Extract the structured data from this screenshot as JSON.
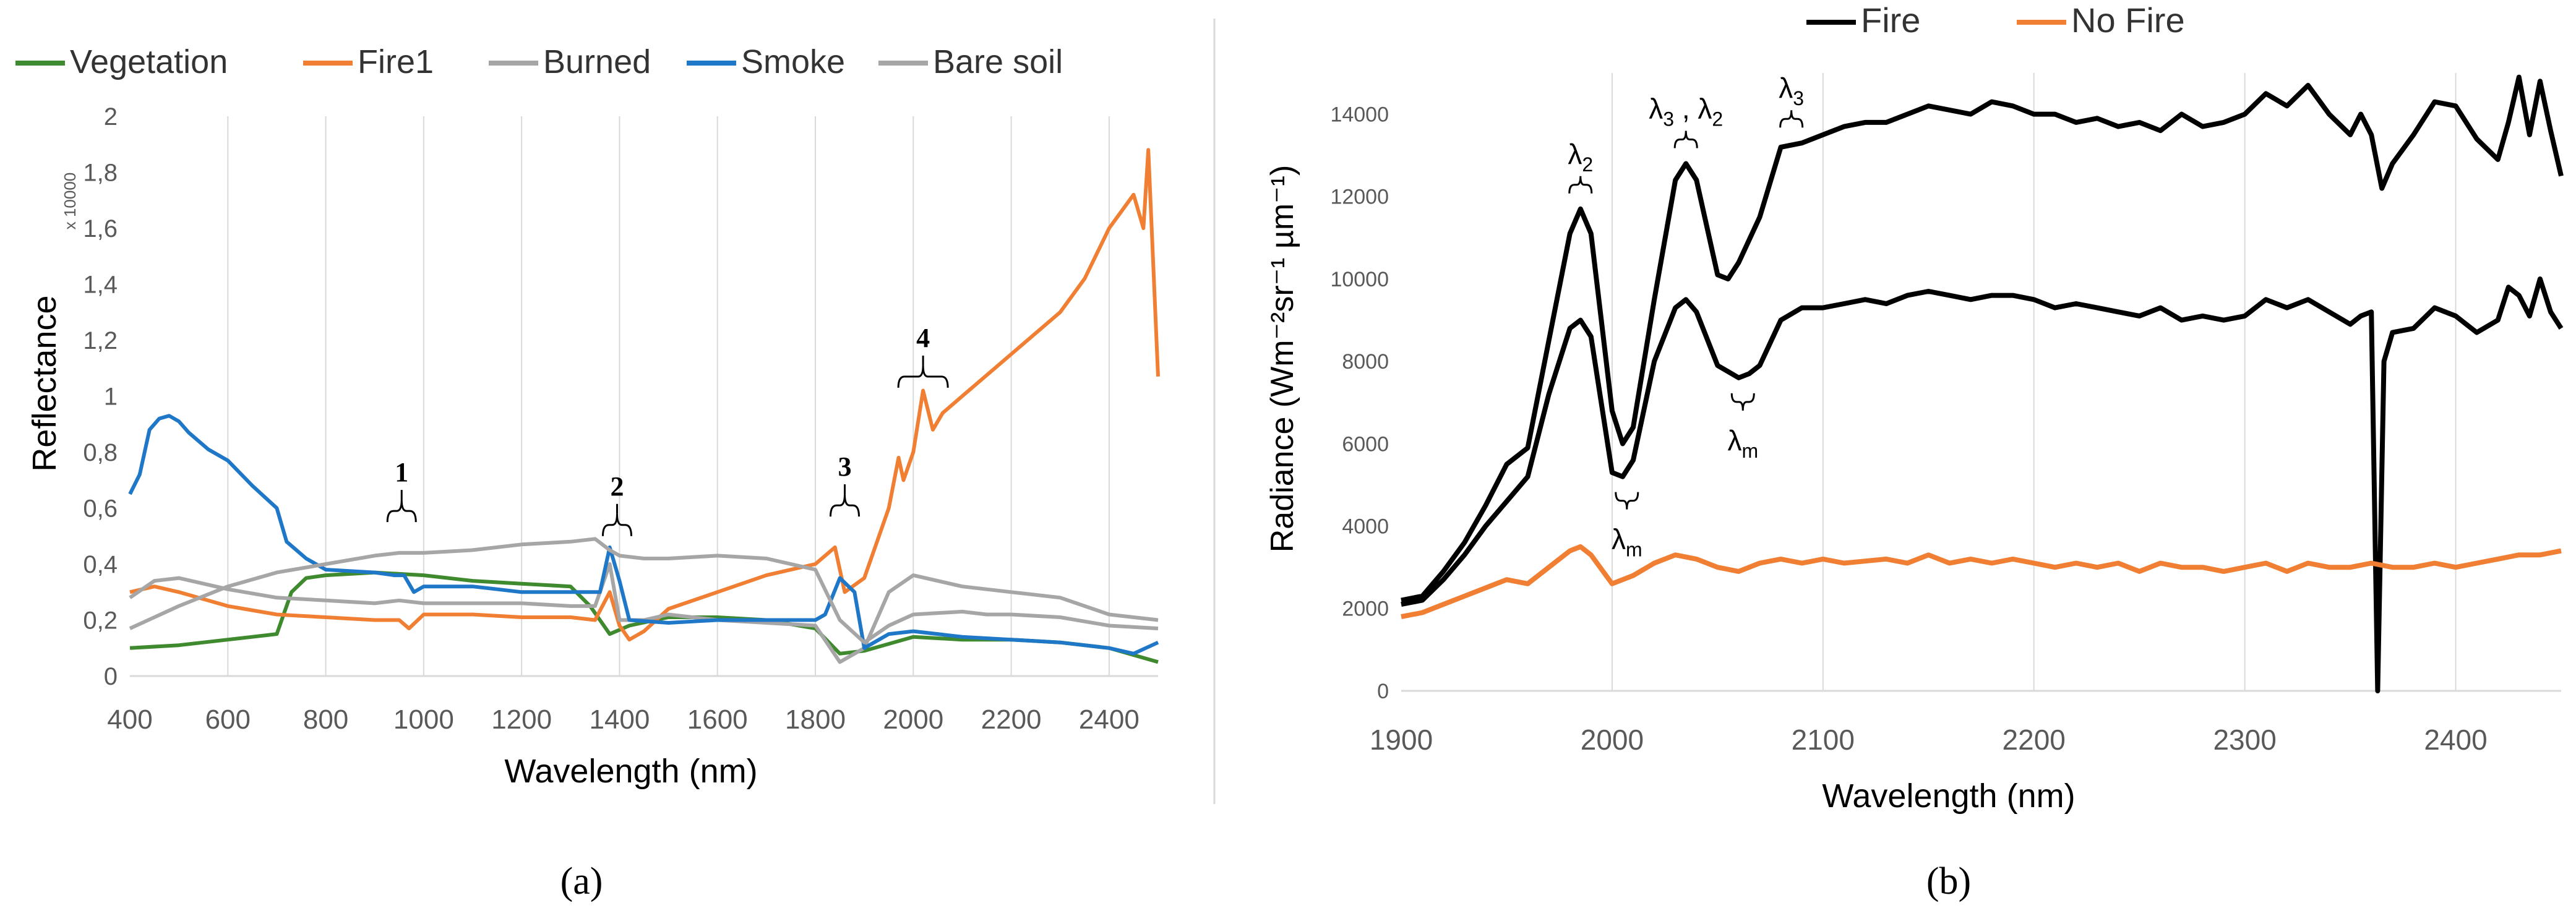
{
  "chart_data": [
    {
      "type": "line",
      "panel_label": "(a)",
      "title": "",
      "xlabel": "Wavelength (nm)",
      "ylabel": "Reflectance",
      "yscale_note": "x 10000",
      "xlim": [
        400,
        2500
      ],
      "ylim": [
        0,
        2
      ],
      "xticks": [
        400,
        600,
        800,
        1000,
        1200,
        1400,
        1600,
        1800,
        2000,
        2200,
        2400
      ],
      "yticks": [
        0,
        0.2,
        0.4,
        0.6,
        0.8,
        1,
        1.2,
        1.4,
        1.6,
        1.8,
        2
      ],
      "ytick_labels": [
        "0",
        "0,2",
        "0,4",
        "0,6",
        "0,8",
        "1",
        "1,2",
        "1,4",
        "1,6",
        "1,8",
        "2"
      ],
      "grid": "vertical",
      "legend_position": "top",
      "series": [
        {
          "name": "Vegetation",
          "color": "#3f8a2e",
          "x": [
            400,
            500,
            600,
            650,
            700,
            730,
            760,
            800,
            900,
            1000,
            1100,
            1200,
            1300,
            1340,
            1380,
            1420,
            1500,
            1600,
            1700,
            1800,
            1850,
            1900,
            2000,
            2100,
            2200,
            2300,
            2400,
            2500
          ],
          "y": [
            0.1,
            0.11,
            0.13,
            0.14,
            0.15,
            0.3,
            0.35,
            0.36,
            0.37,
            0.36,
            0.34,
            0.33,
            0.32,
            0.25,
            0.15,
            0.18,
            0.21,
            0.21,
            0.2,
            0.17,
            0.08,
            0.09,
            0.14,
            0.13,
            0.13,
            0.12,
            0.1,
            0.05
          ]
        },
        {
          "name": "Fire1",
          "color": "#f07f33",
          "x": [
            400,
            450,
            500,
            600,
            700,
            800,
            900,
            950,
            970,
            1000,
            1100,
            1200,
            1300,
            1350,
            1380,
            1400,
            1420,
            1450,
            1500,
            1600,
            1700,
            1800,
            1840,
            1860,
            1900,
            1950,
            1970,
            1980,
            2000,
            2020,
            2040,
            2060,
            2100,
            2200,
            2300,
            2350,
            2400,
            2450,
            2470,
            2480,
            2500
          ],
          "y": [
            0.3,
            0.32,
            0.3,
            0.25,
            0.22,
            0.21,
            0.2,
            0.2,
            0.17,
            0.22,
            0.22,
            0.21,
            0.21,
            0.2,
            0.3,
            0.18,
            0.13,
            0.16,
            0.24,
            0.3,
            0.36,
            0.4,
            0.46,
            0.3,
            0.35,
            0.6,
            0.78,
            0.7,
            0.8,
            1.02,
            0.88,
            0.94,
            1.0,
            1.15,
            1.3,
            1.42,
            1.6,
            1.72,
            1.6,
            1.88,
            1.07
          ]
        },
        {
          "name": "Burned",
          "color": "#a6a6a6",
          "x": [
            400,
            450,
            500,
            600,
            700,
            800,
            900,
            950,
            1000,
            1100,
            1200,
            1300,
            1350,
            1380,
            1400,
            1450,
            1500,
            1600,
            1700,
            1800,
            1850,
            1900,
            1950,
            2000,
            2100,
            2200,
            2300,
            2400,
            2500
          ],
          "y": [
            0.28,
            0.34,
            0.35,
            0.31,
            0.28,
            0.27,
            0.26,
            0.27,
            0.26,
            0.26,
            0.26,
            0.25,
            0.25,
            0.4,
            0.2,
            0.2,
            0.22,
            0.2,
            0.19,
            0.18,
            0.05,
            0.1,
            0.3,
            0.36,
            0.32,
            0.3,
            0.28,
            0.22,
            0.2
          ]
        },
        {
          "name": "Smoke",
          "color": "#1f77c8",
          "x": [
            400,
            420,
            440,
            460,
            480,
            500,
            520,
            560,
            600,
            650,
            700,
            720,
            760,
            800,
            900,
            940,
            960,
            980,
            1000,
            1100,
            1150,
            1200,
            1300,
            1360,
            1380,
            1400,
            1420,
            1500,
            1600,
            1700,
            1800,
            1820,
            1850,
            1880,
            1900,
            1950,
            2000,
            2100,
            2200,
            2300,
            2400,
            2450,
            2500
          ],
          "y": [
            0.65,
            0.72,
            0.88,
            0.92,
            0.93,
            0.91,
            0.87,
            0.81,
            0.77,
            0.68,
            0.6,
            0.48,
            0.42,
            0.38,
            0.37,
            0.36,
            0.36,
            0.3,
            0.32,
            0.32,
            0.31,
            0.3,
            0.3,
            0.3,
            0.46,
            0.34,
            0.2,
            0.19,
            0.2,
            0.2,
            0.2,
            0.22,
            0.35,
            0.3,
            0.1,
            0.15,
            0.16,
            0.14,
            0.13,
            0.12,
            0.1,
            0.08,
            0.12
          ]
        },
        {
          "name": "Bare soil",
          "color": "#a6a6a6",
          "x": [
            400,
            500,
            600,
            700,
            800,
            900,
            950,
            1000,
            1100,
            1200,
            1300,
            1350,
            1380,
            1400,
            1450,
            1500,
            1600,
            1700,
            1800,
            1850,
            1900,
            1950,
            2000,
            2100,
            2150,
            2200,
            2300,
            2400,
            2500
          ],
          "y": [
            0.17,
            0.25,
            0.32,
            0.37,
            0.4,
            0.43,
            0.44,
            0.44,
            0.45,
            0.47,
            0.48,
            0.49,
            0.45,
            0.43,
            0.42,
            0.42,
            0.43,
            0.42,
            0.38,
            0.2,
            0.12,
            0.18,
            0.22,
            0.23,
            0.22,
            0.22,
            0.21,
            0.18,
            0.17
          ]
        }
      ],
      "annotations": [
        {
          "label": "1",
          "x": 955
        },
        {
          "label": "2",
          "x": 1395
        },
        {
          "label": "3",
          "x": 1860
        },
        {
          "label": "4",
          "x": 2020
        }
      ]
    },
    {
      "type": "line",
      "panel_label": "(b)",
      "title": "",
      "xlabel": "Wavelength (nm)",
      "ylabel": "Radiance (Wm⁻²sr⁻¹ µm⁻¹)",
      "xlim": [
        1900,
        2450
      ],
      "ylim": [
        0,
        15000
      ],
      "xticks": [
        1900,
        2000,
        2100,
        2200,
        2300,
        2400
      ],
      "yticks": [
        0,
        2000,
        4000,
        6000,
        8000,
        10000,
        12000,
        14000
      ],
      "grid": "vertical",
      "legend_position": "top",
      "series": [
        {
          "name": "Fire",
          "color": "#000000",
          "x": [
            1900,
            1910,
            1920,
            1930,
            1940,
            1950,
            1960,
            1970,
            1980,
            1985,
            1990,
            2000,
            2005,
            2010,
            2020,
            2030,
            2035,
            2040,
            2050,
            2055,
            2060,
            2070,
            2080,
            2090,
            2100,
            2110,
            2120,
            2130,
            2140,
            2150,
            2160,
            2170,
            2180,
            2190,
            2200,
            2210,
            2220,
            2230,
            2240,
            2250,
            2260,
            2270,
            2280,
            2290,
            2300,
            2310,
            2320,
            2330,
            2340,
            2350,
            2355,
            2360,
            2365,
            2370,
            2380,
            2390,
            2400,
            2410,
            2420,
            2425,
            2430,
            2435,
            2440,
            2445,
            2450
          ],
          "y": [
            2200,
            2300,
            2900,
            3600,
            4500,
            5500,
            5900,
            8500,
            11100,
            11700,
            11100,
            6800,
            6000,
            6400,
            9500,
            12400,
            12800,
            12400,
            10100,
            10000,
            10400,
            11500,
            13200,
            13300,
            13500,
            13700,
            13800,
            13800,
            14000,
            14200,
            14100,
            14000,
            14300,
            14200,
            14000,
            14000,
            13800,
            13900,
            13700,
            13800,
            13600,
            14000,
            13700,
            13800,
            14000,
            14500,
            14200,
            14700,
            14000,
            13500,
            14000,
            13500,
            12200,
            12800,
            13500,
            14300,
            14200,
            13400,
            12900,
            13800,
            14900,
            13500,
            14800,
            13600,
            12500
          ]
        },
        {
          "name": "Fire",
          "color": "#000000",
          "x": [
            1900,
            1910,
            1920,
            1930,
            1940,
            1950,
            1960,
            1970,
            1980,
            1985,
            1990,
            2000,
            2005,
            2010,
            2020,
            2030,
            2035,
            2040,
            2050,
            2060,
            2065,
            2070,
            2080,
            2090,
            2100,
            2110,
            2120,
            2130,
            2140,
            2150,
            2160,
            2170,
            2180,
            2190,
            2200,
            2210,
            2220,
            2230,
            2240,
            2250,
            2260,
            2270,
            2280,
            2290,
            2300,
            2310,
            2320,
            2330,
            2340,
            2350,
            2355,
            2360,
            2363,
            2366,
            2370,
            2380,
            2390,
            2400,
            2410,
            2420,
            2425,
            2430,
            2435,
            2440,
            2445,
            2450
          ],
          "y": [
            2100,
            2200,
            2700,
            3300,
            4000,
            4600,
            5200,
            7200,
            8800,
            9000,
            8600,
            5300,
            5200,
            5600,
            8000,
            9300,
            9500,
            9200,
            7900,
            7600,
            7700,
            7900,
            9000,
            9300,
            9300,
            9400,
            9500,
            9400,
            9600,
            9700,
            9600,
            9500,
            9600,
            9600,
            9500,
            9300,
            9400,
            9300,
            9200,
            9100,
            9300,
            9000,
            9100,
            9000,
            9100,
            9500,
            9300,
            9500,
            9200,
            8900,
            9100,
            9200,
            0,
            8000,
            8700,
            8800,
            9300,
            9100,
            8700,
            9000,
            9800,
            9600,
            9100,
            10000,
            9200,
            8800
          ]
        },
        {
          "name": "No Fire",
          "color": "#f07f33",
          "x": [
            1900,
            1910,
            1920,
            1930,
            1940,
            1950,
            1960,
            1970,
            1980,
            1985,
            1990,
            2000,
            2010,
            2020,
            2030,
            2040,
            2050,
            2060,
            2070,
            2080,
            2090,
            2100,
            2110,
            2120,
            2130,
            2140,
            2150,
            2160,
            2170,
            2180,
            2190,
            2200,
            2210,
            2220,
            2230,
            2240,
            2250,
            2260,
            2270,
            2280,
            2290,
            2300,
            2310,
            2320,
            2330,
            2340,
            2350,
            2360,
            2370,
            2380,
            2390,
            2400,
            2410,
            2420,
            2430,
            2440,
            2450
          ],
          "y": [
            1800,
            1900,
            2100,
            2300,
            2500,
            2700,
            2600,
            3000,
            3400,
            3500,
            3300,
            2600,
            2800,
            3100,
            3300,
            3200,
            3000,
            2900,
            3100,
            3200,
            3100,
            3200,
            3100,
            3150,
            3200,
            3100,
            3300,
            3100,
            3200,
            3100,
            3200,
            3100,
            3000,
            3100,
            3000,
            3100,
            2900,
            3100,
            3000,
            3000,
            2900,
            3000,
            3100,
            2900,
            3100,
            3000,
            3000,
            3100,
            3000,
            3000,
            3100,
            3000,
            3100,
            3200,
            3300,
            3300,
            3400
          ]
        }
      ],
      "annotations": [
        {
          "label": "λ",
          "sub": "2",
          "x": 1985,
          "y": 11700
        },
        {
          "label": "λ",
          "sub": "3",
          "label2": "λ",
          "sub2": "2",
          "sep": " , ",
          "x": 2035,
          "y": 12800
        },
        {
          "label": "λ",
          "sub": "3",
          "x": 2085,
          "y": 13300
        },
        {
          "label": "λ",
          "sub": "m",
          "x": 2007,
          "y": 5200
        },
        {
          "label": "λ",
          "sub": "m",
          "x": 2062,
          "y": 7600
        }
      ]
    }
  ]
}
